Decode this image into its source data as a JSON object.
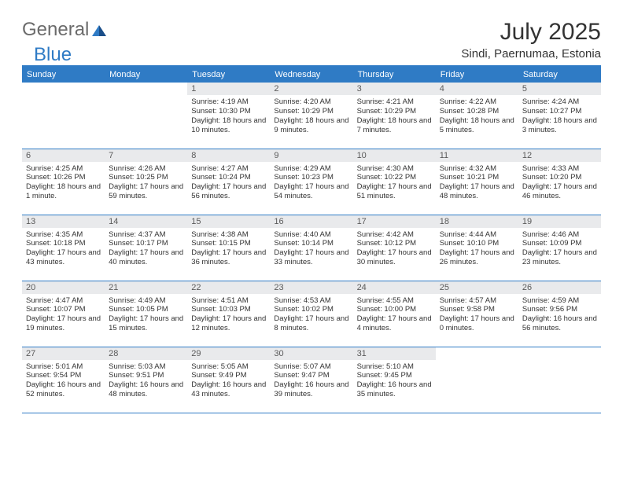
{
  "logo": {
    "text_left": "General",
    "text_right": "Blue"
  },
  "title": "July 2025",
  "location": "Sindi, Paernumaa, Estonia",
  "colors": {
    "accent": "#2f7bc5",
    "header_bg": "#2f7bc5",
    "header_text": "#ffffff",
    "daynum_bg": "#e9eaec",
    "text": "#333333",
    "logo_gray": "#6b6b6b"
  },
  "weekdays": [
    "Sunday",
    "Monday",
    "Tuesday",
    "Wednesday",
    "Thursday",
    "Friday",
    "Saturday"
  ],
  "weeks": [
    [
      null,
      null,
      {
        "n": "1",
        "sr": "4:19 AM",
        "ss": "10:30 PM",
        "dl": "18 hours and 10 minutes."
      },
      {
        "n": "2",
        "sr": "4:20 AM",
        "ss": "10:29 PM",
        "dl": "18 hours and 9 minutes."
      },
      {
        "n": "3",
        "sr": "4:21 AM",
        "ss": "10:29 PM",
        "dl": "18 hours and 7 minutes."
      },
      {
        "n": "4",
        "sr": "4:22 AM",
        "ss": "10:28 PM",
        "dl": "18 hours and 5 minutes."
      },
      {
        "n": "5",
        "sr": "4:24 AM",
        "ss": "10:27 PM",
        "dl": "18 hours and 3 minutes."
      }
    ],
    [
      {
        "n": "6",
        "sr": "4:25 AM",
        "ss": "10:26 PM",
        "dl": "18 hours and 1 minute."
      },
      {
        "n": "7",
        "sr": "4:26 AM",
        "ss": "10:25 PM",
        "dl": "17 hours and 59 minutes."
      },
      {
        "n": "8",
        "sr": "4:27 AM",
        "ss": "10:24 PM",
        "dl": "17 hours and 56 minutes."
      },
      {
        "n": "9",
        "sr": "4:29 AM",
        "ss": "10:23 PM",
        "dl": "17 hours and 54 minutes."
      },
      {
        "n": "10",
        "sr": "4:30 AM",
        "ss": "10:22 PM",
        "dl": "17 hours and 51 minutes."
      },
      {
        "n": "11",
        "sr": "4:32 AM",
        "ss": "10:21 PM",
        "dl": "17 hours and 48 minutes."
      },
      {
        "n": "12",
        "sr": "4:33 AM",
        "ss": "10:20 PM",
        "dl": "17 hours and 46 minutes."
      }
    ],
    [
      {
        "n": "13",
        "sr": "4:35 AM",
        "ss": "10:18 PM",
        "dl": "17 hours and 43 minutes."
      },
      {
        "n": "14",
        "sr": "4:37 AM",
        "ss": "10:17 PM",
        "dl": "17 hours and 40 minutes."
      },
      {
        "n": "15",
        "sr": "4:38 AM",
        "ss": "10:15 PM",
        "dl": "17 hours and 36 minutes."
      },
      {
        "n": "16",
        "sr": "4:40 AM",
        "ss": "10:14 PM",
        "dl": "17 hours and 33 minutes."
      },
      {
        "n": "17",
        "sr": "4:42 AM",
        "ss": "10:12 PM",
        "dl": "17 hours and 30 minutes."
      },
      {
        "n": "18",
        "sr": "4:44 AM",
        "ss": "10:10 PM",
        "dl": "17 hours and 26 minutes."
      },
      {
        "n": "19",
        "sr": "4:46 AM",
        "ss": "10:09 PM",
        "dl": "17 hours and 23 minutes."
      }
    ],
    [
      {
        "n": "20",
        "sr": "4:47 AM",
        "ss": "10:07 PM",
        "dl": "17 hours and 19 minutes."
      },
      {
        "n": "21",
        "sr": "4:49 AM",
        "ss": "10:05 PM",
        "dl": "17 hours and 15 minutes."
      },
      {
        "n": "22",
        "sr": "4:51 AM",
        "ss": "10:03 PM",
        "dl": "17 hours and 12 minutes."
      },
      {
        "n": "23",
        "sr": "4:53 AM",
        "ss": "10:02 PM",
        "dl": "17 hours and 8 minutes."
      },
      {
        "n": "24",
        "sr": "4:55 AM",
        "ss": "10:00 PM",
        "dl": "17 hours and 4 minutes."
      },
      {
        "n": "25",
        "sr": "4:57 AM",
        "ss": "9:58 PM",
        "dl": "17 hours and 0 minutes."
      },
      {
        "n": "26",
        "sr": "4:59 AM",
        "ss": "9:56 PM",
        "dl": "16 hours and 56 minutes."
      }
    ],
    [
      {
        "n": "27",
        "sr": "5:01 AM",
        "ss": "9:54 PM",
        "dl": "16 hours and 52 minutes."
      },
      {
        "n": "28",
        "sr": "5:03 AM",
        "ss": "9:51 PM",
        "dl": "16 hours and 48 minutes."
      },
      {
        "n": "29",
        "sr": "5:05 AM",
        "ss": "9:49 PM",
        "dl": "16 hours and 43 minutes."
      },
      {
        "n": "30",
        "sr": "5:07 AM",
        "ss": "9:47 PM",
        "dl": "16 hours and 39 minutes."
      },
      {
        "n": "31",
        "sr": "5:10 AM",
        "ss": "9:45 PM",
        "dl": "16 hours and 35 minutes."
      },
      null,
      null
    ]
  ],
  "labels": {
    "sunrise": "Sunrise:",
    "sunset": "Sunset:",
    "daylight": "Daylight:"
  }
}
